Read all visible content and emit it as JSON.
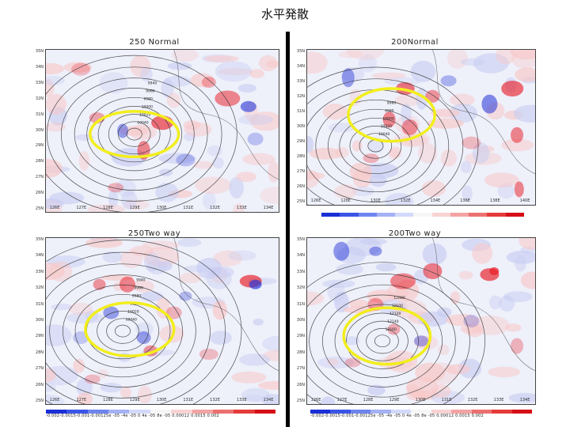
{
  "slide": {
    "title": "水平発散"
  },
  "lat_labels": [
    "35N",
    "34N",
    "33N",
    "32N",
    "31N",
    "30N",
    "29N",
    "28N",
    "27N",
    "26N",
    "25N"
  ],
  "panels": [
    {
      "id": "tl",
      "title": "250  Normal",
      "lon_labels": [
        "126E",
        "127E",
        "128E",
        "129E",
        "130E",
        "131E",
        "132E",
        "133E",
        "134E"
      ],
      "contour_labels": [
        "10040",
        "10020",
        "10000",
        "9980",
        "9960",
        "9940"
      ],
      "colorbar": null
    },
    {
      "id": "tr",
      "title": "200Normal",
      "lon_labels": [
        "126E",
        "128E",
        "130E",
        "132E",
        "134E",
        "136E",
        "138E",
        "140E"
      ],
      "contour_labels": [
        "10040",
        "10020",
        "10000",
        "9980",
        "9960"
      ],
      "colorbar": {
        "labels": ""
      }
    },
    {
      "id": "bl",
      "title": "250Two  way",
      "lon_labels": [
        "126E",
        "127E",
        "128E",
        "129E",
        "130E",
        "131E",
        "132E",
        "133E",
        "134E"
      ],
      "contour_labels": [
        "10040",
        "10020",
        "10000",
        "9980",
        "9960",
        "9940"
      ],
      "colorbar": {
        "labels": "-0.002-0.0015-0.001-0.00125e -05  -4e -05   0    4e -05  8e -05  0.00012 0.0015 0.002"
      }
    },
    {
      "id": "br",
      "title": "200Two  way",
      "lon_labels": [
        "126E",
        "127E",
        "128E",
        "129E",
        "130E",
        "131E",
        "132E",
        "133E",
        "134E"
      ],
      "contour_labels": [
        "12160",
        "12140",
        "12120",
        "12100",
        "12080"
      ],
      "colorbar": {
        "labels": "-0.002-0.0015-0.001-0.00125e -05  -4e -05   0    4e -05  8e -05  0.00012 0.0015 0.002"
      }
    }
  ],
  "colors": {
    "highlight_ellipse": "#f2ee1c",
    "divergence_positive": "#e8202a",
    "divergence_negative": "#2535d8",
    "contour": "#333333"
  }
}
